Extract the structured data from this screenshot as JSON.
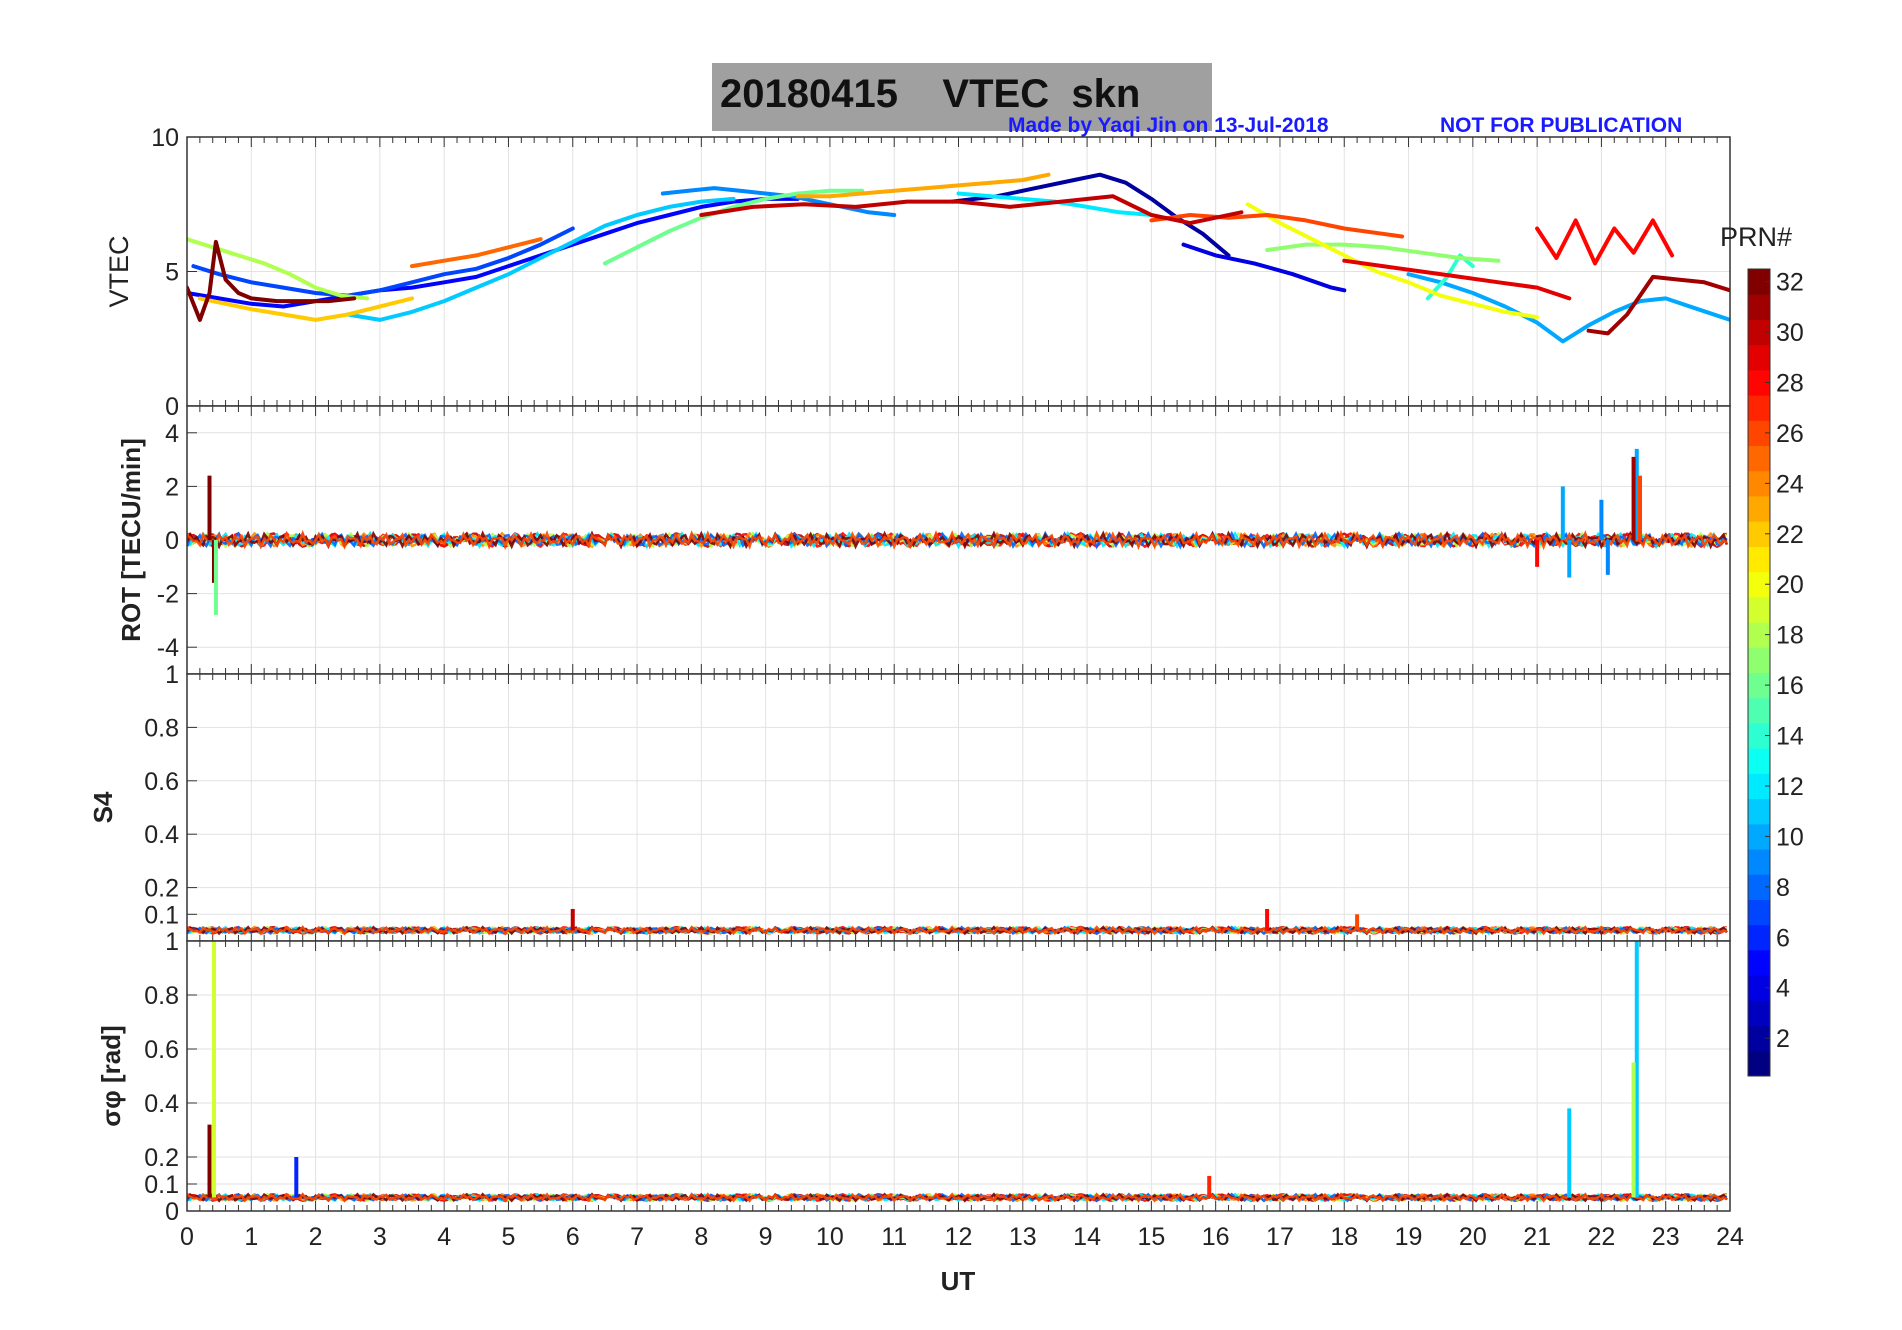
{
  "header": {
    "title": "20180415    VTEC  skn",
    "credit": "Made by Yaqi Jin on 13-Jul-2018",
    "warning": "NOT FOR PUBLICATION"
  },
  "colorbar": {
    "label": "PRN#",
    "ticks": [
      "2",
      "4",
      "6",
      "8",
      "10",
      "12",
      "14",
      "16",
      "18",
      "20",
      "22",
      "24",
      "26",
      "28",
      "30",
      "32"
    ],
    "range": [
      1,
      32
    ],
    "colormap": "jet"
  },
  "chart_data": [
    {
      "type": "line",
      "ylabel": "VTEC",
      "xlabel": "",
      "xlim": [
        0,
        24
      ],
      "ylim": [
        0,
        10
      ],
      "yticks": [
        "0",
        "5",
        "10"
      ],
      "grid": true,
      "series": [
        {
          "prn": 2,
          "x": [
            11.9,
            12.6,
            13.2,
            13.8,
            14.2,
            14.6,
            15.0,
            15.4,
            15.8,
            16.2
          ],
          "y": [
            7.6,
            7.8,
            8.1,
            8.4,
            8.6,
            8.3,
            7.7,
            7.0,
            6.4,
            5.6
          ]
        },
        {
          "prn": 4,
          "x": [
            15.5,
            16.0,
            16.6,
            17.2,
            17.8,
            18.0
          ],
          "y": [
            6.0,
            5.6,
            5.3,
            4.9,
            4.4,
            4.3
          ]
        },
        {
          "prn": 5,
          "x": [
            0.0,
            0.5,
            1.0,
            1.5,
            2.0,
            2.5,
            3.0,
            3.5,
            4.0,
            4.5,
            5.0,
            5.5,
            6.0,
            6.5,
            7.0,
            7.5,
            8.0,
            8.5,
            9.0,
            9.5
          ],
          "y": [
            4.2,
            4.0,
            3.8,
            3.7,
            3.9,
            4.1,
            4.3,
            4.4,
            4.6,
            4.8,
            5.2,
            5.6,
            6.0,
            6.4,
            6.8,
            7.1,
            7.4,
            7.6,
            7.7,
            7.7
          ]
        },
        {
          "prn": 7,
          "x": [
            0.1,
            0.5,
            1.0,
            1.5,
            2.0,
            2.5,
            3.0,
            3.5,
            4.0,
            4.5,
            5.0,
            5.5,
            6.0
          ],
          "y": [
            5.2,
            4.9,
            4.6,
            4.4,
            4.2,
            4.1,
            4.3,
            4.6,
            4.9,
            5.1,
            5.5,
            6.0,
            6.6
          ]
        },
        {
          "prn": 9,
          "x": [
            7.4,
            7.8,
            8.2,
            8.6,
            9.0,
            9.4,
            9.8,
            10.2,
            10.6,
            11.0
          ],
          "y": [
            7.9,
            8.0,
            8.1,
            8.0,
            7.9,
            7.8,
            7.6,
            7.4,
            7.2,
            7.1
          ]
        },
        {
          "prn": 10,
          "x": [
            19.0,
            19.5,
            20.0,
            20.5,
            21.0,
            21.4,
            21.8,
            22.2,
            22.6,
            23.0,
            23.5,
            24.0
          ],
          "y": [
            4.9,
            4.6,
            4.2,
            3.7,
            3.1,
            2.4,
            3.0,
            3.5,
            3.9,
            4.0,
            3.6,
            3.2
          ]
        },
        {
          "prn": 11,
          "x": [
            2.5,
            3.0,
            3.5,
            4.0,
            4.5,
            5.0,
            5.5,
            6.0,
            6.5,
            7.0,
            7.5,
            8.0,
            8.5
          ],
          "y": [
            3.4,
            3.2,
            3.5,
            3.9,
            4.4,
            4.9,
            5.5,
            6.1,
            6.7,
            7.1,
            7.4,
            7.6,
            7.7
          ]
        },
        {
          "prn": 12,
          "x": [
            12.0,
            12.5,
            13.0,
            13.5,
            14.0,
            14.5,
            15.0
          ],
          "y": [
            7.9,
            7.8,
            7.7,
            7.6,
            7.4,
            7.2,
            7.1
          ]
        },
        {
          "prn": 14,
          "x": [
            19.3,
            19.6,
            19.8,
            20.0
          ],
          "y": [
            4.0,
            4.8,
            5.6,
            5.2
          ]
        },
        {
          "prn": 16,
          "x": [
            6.5,
            7.0,
            7.5,
            8.0,
            8.5,
            9.0,
            9.5,
            10.0,
            10.5
          ],
          "y": [
            5.3,
            5.9,
            6.5,
            7.0,
            7.4,
            7.7,
            7.9,
            8.0,
            8.0
          ]
        },
        {
          "prn": 17,
          "x": [
            16.8,
            17.4,
            18.0,
            18.6,
            19.2,
            19.8,
            20.4
          ],
          "y": [
            5.8,
            6.0,
            6.0,
            5.9,
            5.7,
            5.5,
            5.4
          ]
        },
        {
          "prn": 18,
          "x": [
            0.0,
            0.4,
            0.8,
            1.2,
            1.6,
            2.0,
            2.4,
            2.8
          ],
          "y": [
            6.2,
            5.9,
            5.6,
            5.3,
            4.9,
            4.4,
            4.1,
            4.0
          ]
        },
        {
          "prn": 20,
          "x": [
            16.5,
            17.0,
            17.5,
            18.0,
            18.5,
            19.0,
            19.5,
            20.0,
            20.5,
            21.0
          ],
          "y": [
            7.5,
            6.8,
            6.2,
            5.6,
            5.0,
            4.6,
            4.1,
            3.8,
            3.5,
            3.3
          ]
        },
        {
          "prn": 22,
          "x": [
            0.2,
            0.6,
            1.0,
            1.5,
            2.0,
            2.5,
            3.0,
            3.5
          ],
          "y": [
            4.0,
            3.8,
            3.6,
            3.4,
            3.2,
            3.4,
            3.7,
            4.0
          ]
        },
        {
          "prn": 23,
          "x": [
            9.5,
            10.0,
            10.5,
            11.0,
            11.5,
            12.0,
            12.5,
            13.0,
            13.4
          ],
          "y": [
            7.8,
            7.8,
            7.9,
            8.0,
            8.1,
            8.2,
            8.3,
            8.4,
            8.6
          ]
        },
        {
          "prn": 25,
          "x": [
            3.5,
            4.0,
            4.5,
            5.0,
            5.5
          ],
          "y": [
            5.2,
            5.4,
            5.6,
            5.9,
            6.2
          ]
        },
        {
          "prn": 26,
          "x": [
            15.0,
            15.6,
            16.2,
            16.8,
            17.4,
            18.0,
            18.6,
            18.9
          ],
          "y": [
            6.9,
            7.1,
            7.0,
            7.1,
            6.9,
            6.6,
            6.4,
            6.3
          ]
        },
        {
          "prn": 28,
          "x": [
            21.0,
            21.3,
            21.6,
            21.9,
            22.2,
            22.5,
            22.8,
            23.1
          ],
          "y": [
            6.6,
            5.5,
            6.9,
            5.3,
            6.6,
            5.7,
            6.9,
            5.6
          ]
        },
        {
          "prn": 29,
          "x": [
            18.0,
            18.6,
            19.2,
            19.8,
            20.4,
            21.0,
            21.5
          ],
          "y": [
            5.4,
            5.2,
            5.0,
            4.8,
            4.6,
            4.4,
            4.0
          ]
        },
        {
          "prn": 30,
          "x": [
            8.0,
            8.8,
            9.6,
            10.4,
            11.2,
            12.0,
            12.8,
            13.6,
            14.4,
            15.0,
            15.6,
            16.4
          ],
          "y": [
            7.1,
            7.4,
            7.5,
            7.4,
            7.6,
            7.6,
            7.4,
            7.6,
            7.8,
            7.1,
            6.8,
            7.2
          ]
        },
        {
          "prn": 31,
          "x": [
            21.8,
            22.1,
            22.4,
            22.8,
            23.2,
            23.6,
            24.0
          ],
          "y": [
            2.8,
            2.7,
            3.4,
            4.8,
            4.7,
            4.6,
            4.3
          ]
        },
        {
          "prn": 32,
          "x": [
            0.0,
            0.2,
            0.35,
            0.45,
            0.6,
            0.8,
            1.0,
            1.4,
            1.8,
            2.2,
            2.6
          ],
          "y": [
            4.4,
            3.2,
            4.2,
            6.1,
            4.7,
            4.2,
            4.0,
            3.9,
            3.9,
            3.9,
            4.0
          ]
        }
      ]
    },
    {
      "type": "line",
      "ylabel": "ROT [TECU/min]",
      "xlim": [
        0,
        24
      ],
      "ylim": [
        -5,
        5
      ],
      "yticks": [
        "-4",
        "-2",
        "0",
        "2",
        "4"
      ],
      "grid": true,
      "baseline": 0,
      "spikes": [
        {
          "prn": 32,
          "x": 0.35,
          "y": 2.4
        },
        {
          "prn": 32,
          "x": 0.42,
          "y": -1.6
        },
        {
          "prn": 16,
          "x": 0.45,
          "y": -2.8
        },
        {
          "prn": 10,
          "x": 21.4,
          "y": 2.0
        },
        {
          "prn": 10,
          "x": 21.5,
          "y": -1.4
        },
        {
          "prn": 28,
          "x": 21.0,
          "y": -1.0
        },
        {
          "prn": 9,
          "x": 22.0,
          "y": 1.5
        },
        {
          "prn": 9,
          "x": 22.1,
          "y": -1.3
        },
        {
          "prn": 10,
          "x": 22.55,
          "y": 3.4
        },
        {
          "prn": 31,
          "x": 22.5,
          "y": 3.1
        },
        {
          "prn": 26,
          "x": 22.6,
          "y": 2.4
        }
      ]
    },
    {
      "type": "line",
      "ylabel": "S4",
      "xlim": [
        0,
        24
      ],
      "ylim": [
        0,
        1
      ],
      "yticks": [
        "0.1",
        "0.2",
        "0.4",
        "0.6",
        "0.8",
        "1"
      ],
      "grid": true,
      "baseline": 0.04,
      "spikes": [
        {
          "prn": 30,
          "x": 6.0,
          "y": 0.12
        },
        {
          "prn": 28,
          "x": 16.8,
          "y": 0.12
        },
        {
          "prn": 26,
          "x": 18.2,
          "y": 0.1
        }
      ]
    },
    {
      "type": "line",
      "ylabel": "σφ [rad]",
      "xlabel": "UT",
      "xlim": [
        0,
        24
      ],
      "ylim": [
        0,
        1
      ],
      "xticks": [
        "0",
        "1",
        "2",
        "3",
        "4",
        "5",
        "6",
        "7",
        "8",
        "9",
        "10",
        "11",
        "12",
        "13",
        "14",
        "15",
        "16",
        "17",
        "18",
        "19",
        "20",
        "21",
        "22",
        "23",
        "24"
      ],
      "yticks": [
        "0",
        "0.1",
        "0.2",
        "0.4",
        "0.6",
        "0.8",
        "1"
      ],
      "grid": true,
      "baseline": 0.05,
      "spikes": [
        {
          "prn": 19,
          "x": 0.42,
          "y": 1.0
        },
        {
          "prn": 32,
          "x": 0.35,
          "y": 0.32
        },
        {
          "prn": 6,
          "x": 1.7,
          "y": 0.2
        },
        {
          "prn": 11,
          "x": 21.5,
          "y": 0.38
        },
        {
          "prn": 11,
          "x": 22.55,
          "y": 1.0
        },
        {
          "prn": 18,
          "x": 22.5,
          "y": 0.55
        },
        {
          "prn": 27,
          "x": 15.9,
          "y": 0.13
        }
      ]
    }
  ]
}
